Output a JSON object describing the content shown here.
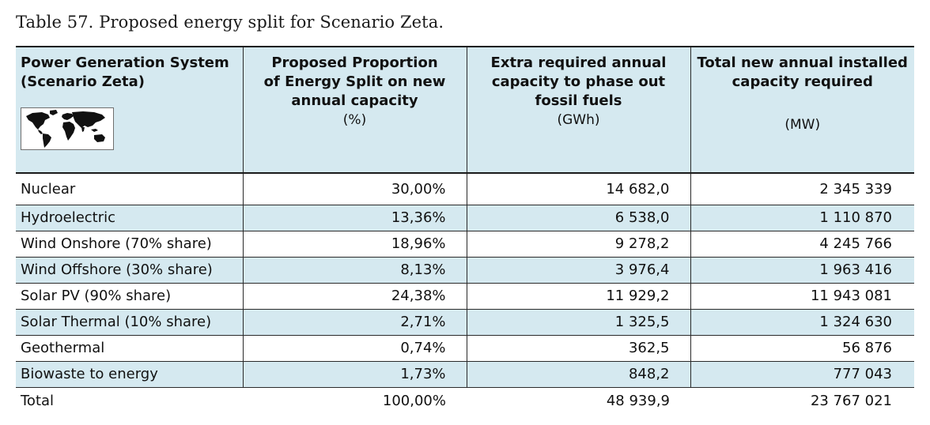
{
  "caption": "Table 57. Proposed energy split for Scenario Zeta.",
  "header": {
    "col1_line1": "Power Generation System",
    "col1_line2": "(Scenario Zeta)",
    "col2_line1": "Proposed Proportion",
    "col2_line2": "of Energy Split on new",
    "col2_line3": "annual capacity",
    "col2_unit": "(%)",
    "col3_line1": "Extra required annual",
    "col3_line2": "capacity to phase out",
    "col3_line3": "fossil fuels",
    "col3_unit": "(GWh)",
    "col4_line1": "Total new annual installed",
    "col4_line2": "capacity required",
    "col4_unit": "(MW)",
    "map_icon": "world-map-icon"
  },
  "rows": [
    {
      "name": "Nuclear",
      "proportion": "30,00%",
      "extra": "14 682,0",
      "installed": "2 345 339"
    },
    {
      "name": "Hydroelectric",
      "proportion": "13,36%",
      "extra": "6 538,0",
      "installed": "1 110 870"
    },
    {
      "name": "Wind Onshore (70% share)",
      "proportion": "18,96%",
      "extra": "9 278,2",
      "installed": "4 245 766"
    },
    {
      "name": "Wind Offshore (30% share)",
      "proportion": "8,13%",
      "extra": "3 976,4",
      "installed": "1 963 416"
    },
    {
      "name": "Solar PV (90% share)",
      "proportion": "24,38%",
      "extra": "11 929,2",
      "installed": "11 943 081"
    },
    {
      "name": "Solar Thermal (10% share)",
      "proportion": "2,71%",
      "extra": "1 325,5",
      "installed": "1 324 630"
    },
    {
      "name": "Geothermal",
      "proportion": "0,74%",
      "extra": "362,5",
      "installed": "56 876"
    },
    {
      "name": "Biowaste to energy",
      "proportion": "1,73%",
      "extra": "848,2",
      "installed": "777 043"
    }
  ],
  "total": {
    "name": "Total",
    "proportion": "100,00%",
    "extra": "48 939,9",
    "installed": "23 767 021"
  },
  "colors": {
    "header_bg": "#d5e9f0",
    "shaded_row_bg": "#d5e9f0",
    "rule": "#1a1a1a"
  }
}
